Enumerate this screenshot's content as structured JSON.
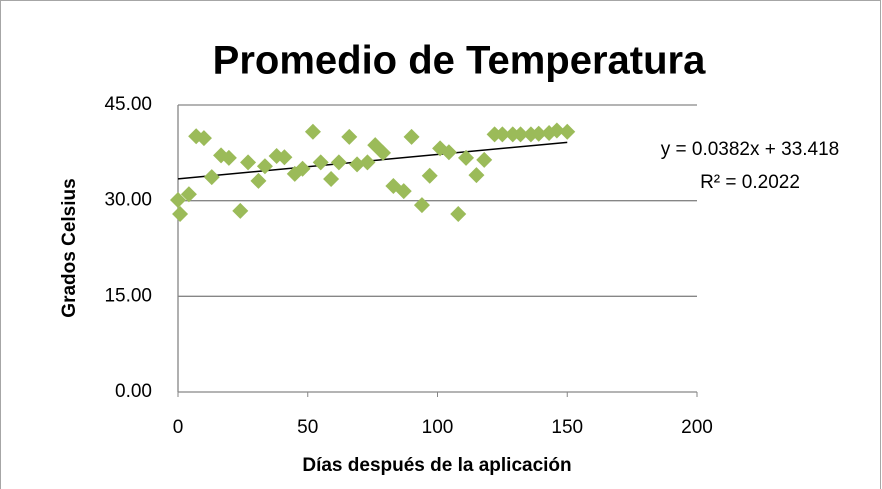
{
  "chart_data": {
    "type": "scatter",
    "title": "Promedio de Temperatura",
    "xlabel": "Días después de la aplicación",
    "ylabel": "Grados Celsius",
    "xlim": [
      0,
      200
    ],
    "xticks": [
      0,
      50,
      100,
      150,
      200
    ],
    "ylim": [
      0,
      45
    ],
    "yticks": [
      {
        "value": 0,
        "label": "0.00"
      },
      {
        "value": 15,
        "label": "15.00"
      },
      {
        "value": 30,
        "label": "30.00"
      },
      {
        "value": 45,
        "label": "45.00"
      }
    ],
    "grid": true,
    "color": "#9bbb59",
    "x": [
      0,
      0.8,
      4.2,
      7,
      10,
      13,
      16.6,
      19.6,
      24,
      27,
      31,
      33.5,
      38,
      41,
      45,
      48,
      52,
      55,
      59,
      62,
      66,
      69,
      73,
      76,
      79,
      83,
      87,
      90,
      94,
      97,
      101,
      104.4,
      108,
      111,
      115,
      118,
      122,
      125,
      129,
      132,
      136,
      139,
      143,
      146,
      150
    ],
    "values": [
      30.1,
      27.9,
      31.0,
      40.1,
      39.8,
      33.7,
      37.1,
      36.7,
      28.4,
      36.0,
      33.1,
      35.4,
      37.0,
      36.8,
      34.2,
      35.0,
      40.8,
      36.0,
      33.4,
      36.0,
      40.0,
      35.7,
      36.0,
      38.7,
      37.5,
      32.3,
      31.5,
      40.0,
      29.3,
      33.9,
      38.2,
      37.6,
      27.9,
      36.7,
      34.0,
      36.4,
      40.4,
      40.4,
      40.4,
      40.4,
      40.4,
      40.5,
      40.6,
      41.0,
      40.8
    ],
    "trendline": {
      "slope": 0.0382,
      "intercept": 33.418,
      "color": "#000000",
      "label": "y = 0.0382x + 33.418",
      "r2_label": "R² = 0.2022"
    }
  }
}
